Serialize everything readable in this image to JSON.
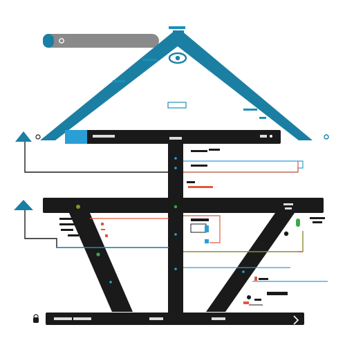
{
  "colors": {
    "frame": "#1a1a1a",
    "roof": "#1b7fa3",
    "accent_blue": "#2a9fd6",
    "accent_red": "#e0573c",
    "accent_olive": "#8a8f2e",
    "accent_green": "#3aa84a",
    "grey_bar": "#8a8a8a",
    "background": "#ffffff"
  },
  "labels": {
    "top_tag": "",
    "roof_center": "",
    "roof_left_tag": "",
    "roof_left_tag2": "",
    "roof_right_tag": "",
    "roof_right_tag2": "",
    "upper_beam_label": "",
    "mid_right_1": "",
    "mid_right_2": "",
    "mid_right_3": "",
    "mid_right_red": "",
    "lower_beam_right": "",
    "lower_beam_right2": "",
    "left_stack_1": "",
    "left_stack_2": "",
    "left_stack_3": "",
    "left_stack_4": "",
    "right_stack_1": "",
    "base_left": "",
    "base_center": "",
    "base_right": ""
  },
  "icons": {
    "left_arrow_upper": "up-triangle-icon",
    "left_arrow_lower": "up-triangle-icon",
    "roof_eye": "eye-icon",
    "right_ring": "ring-icon",
    "left_ring": "ring-icon",
    "base_left_lock": "lock-icon",
    "base_right_lock": "check-icon",
    "grey_bar_dot": "settings-icon"
  }
}
